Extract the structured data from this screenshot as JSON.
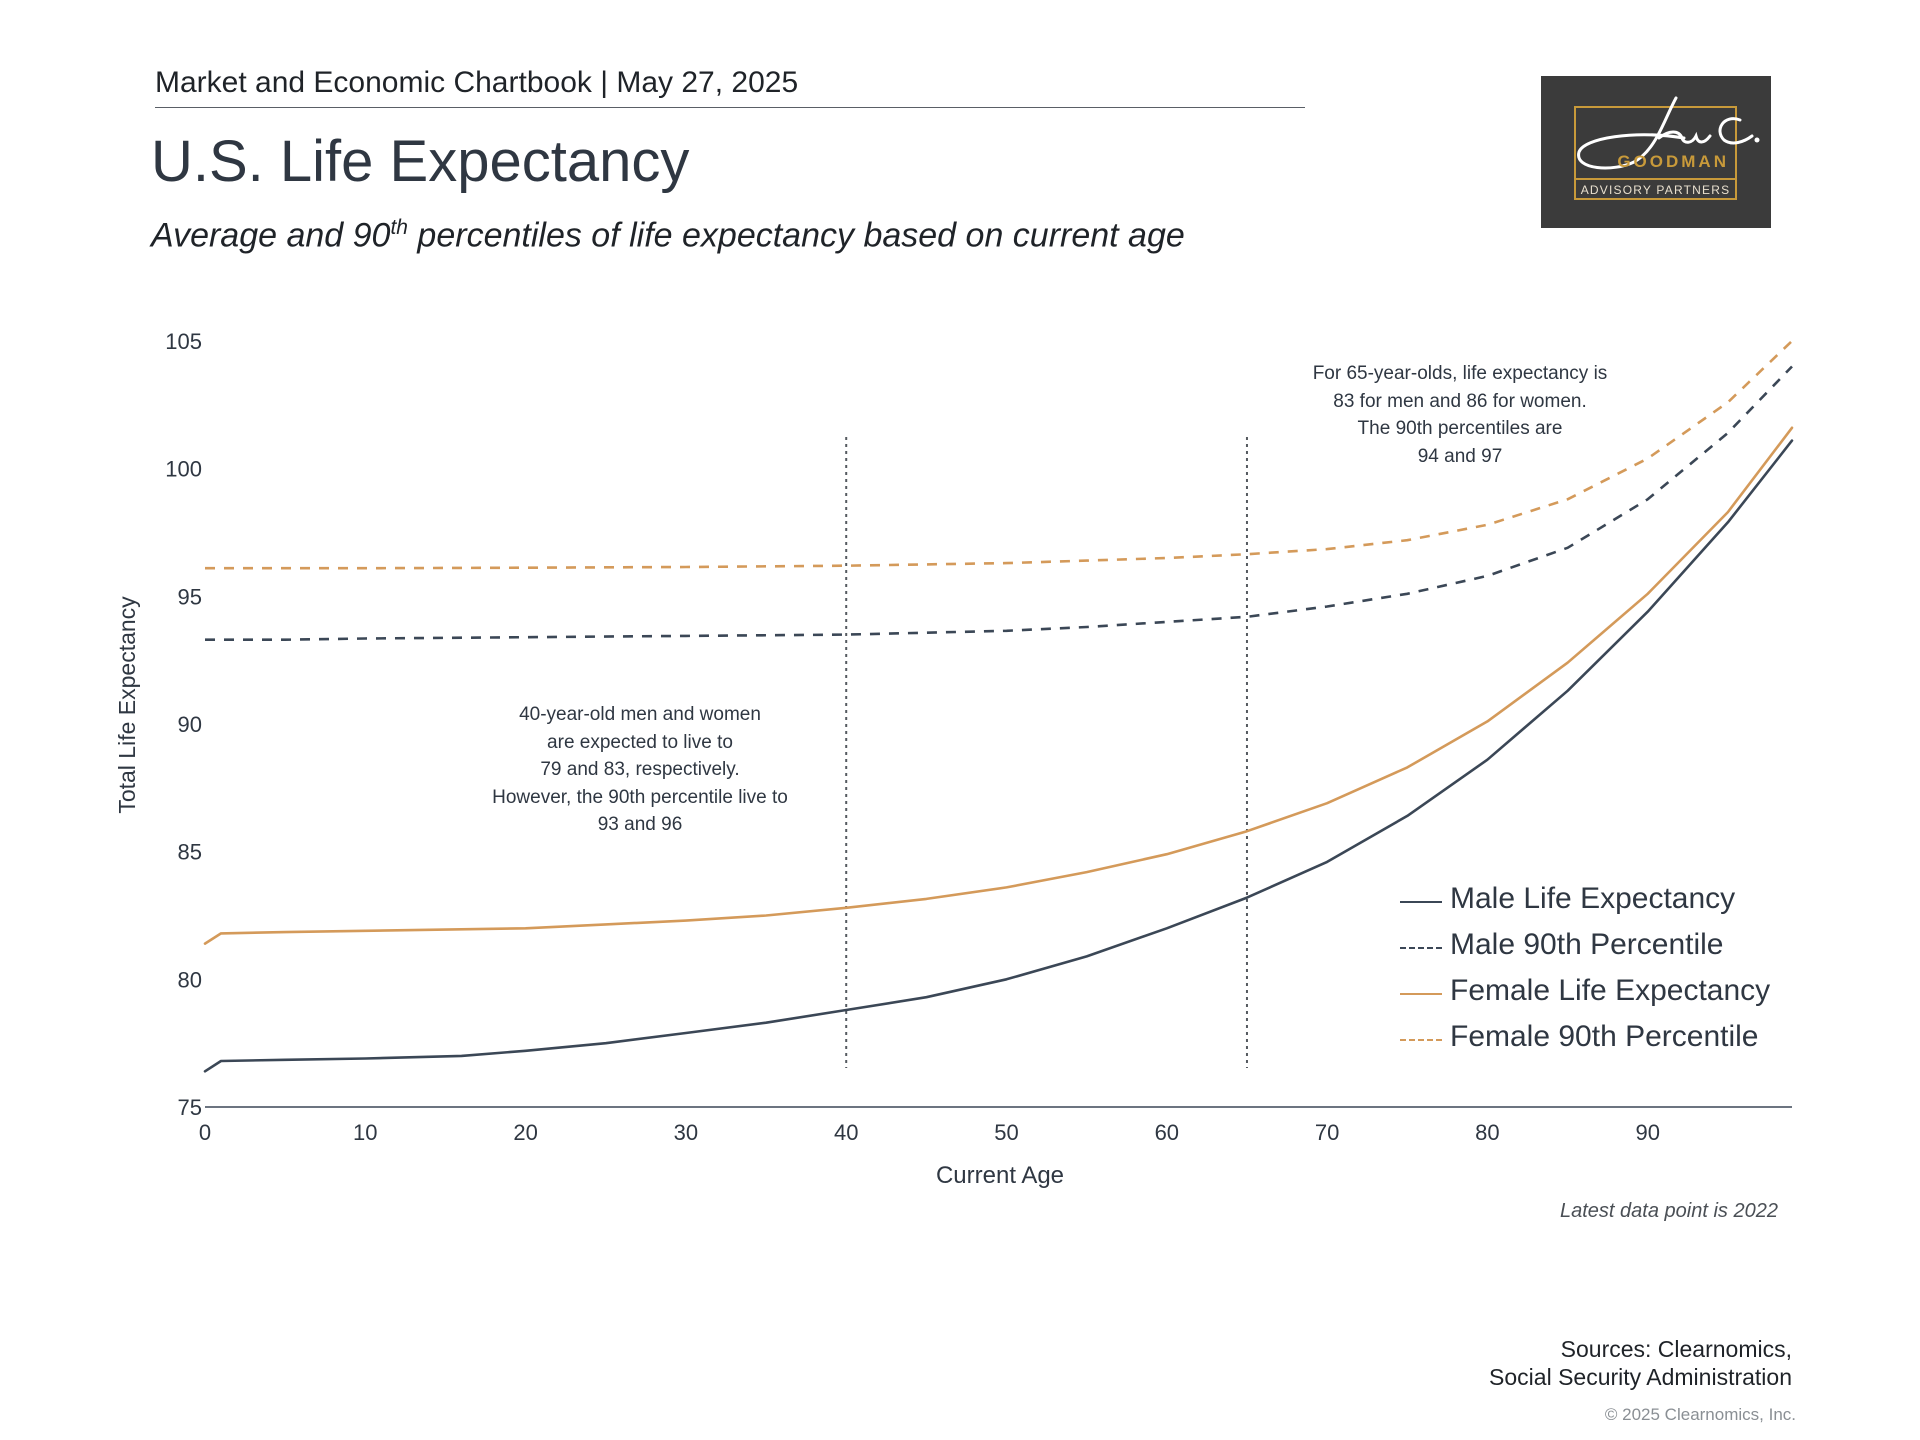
{
  "header": {
    "chartbook": "Market and Economic Chartbook | May 27, 2025",
    "title": "U.S. Life Expectancy",
    "subtitle_pre": "Average and 90",
    "subtitle_sup": "th",
    "subtitle_post": " percentiles of life expectancy based on current age"
  },
  "logo": {
    "wordmark": "GOODMAN",
    "tagline": "ADVISORY PARTNERS",
    "signature": "Jon C."
  },
  "chart_data": {
    "type": "line",
    "xlabel": "Current Age",
    "ylabel": "Total Life Expectancy",
    "xlim": [
      0,
      99
    ],
    "ylim": [
      75,
      105
    ],
    "x_ticks": [
      0,
      10,
      20,
      30,
      40,
      50,
      60,
      70,
      80,
      90
    ],
    "y_ticks": [
      75,
      80,
      85,
      90,
      95,
      100,
      105
    ],
    "grid": false,
    "legend_position": "bottom-right",
    "vertical_markers": [
      40,
      65
    ],
    "series": [
      {
        "name": "Male Life Expectancy",
        "style": "solid",
        "color": "#3b4756",
        "x": [
          0,
          1,
          5,
          10,
          16,
          20,
          25,
          30,
          35,
          40,
          45,
          50,
          55,
          60,
          65,
          70,
          75,
          80,
          85,
          90,
          95,
          99
        ],
        "y": [
          76.4,
          76.8,
          76.85,
          76.9,
          77.0,
          77.2,
          77.5,
          77.9,
          78.3,
          78.8,
          79.3,
          80.0,
          80.9,
          82.0,
          83.2,
          84.6,
          86.4,
          88.6,
          91.3,
          94.4,
          97.9,
          101.1
        ]
      },
      {
        "name": "Male 90th Percentile",
        "style": "dashed",
        "color": "#3b4756",
        "x": [
          0,
          5,
          10,
          20,
          30,
          40,
          50,
          55,
          60,
          65,
          70,
          75,
          80,
          85,
          90,
          95,
          99
        ],
        "y": [
          93.3,
          93.3,
          93.35,
          93.4,
          93.45,
          93.5,
          93.65,
          93.8,
          94.0,
          94.2,
          94.6,
          95.1,
          95.8,
          96.9,
          98.8,
          101.4,
          104.0
        ]
      },
      {
        "name": "Female Life Expectancy",
        "style": "solid",
        "color": "#d49a5a",
        "x": [
          0,
          1,
          5,
          10,
          20,
          25,
          30,
          35,
          40,
          45,
          50,
          55,
          60,
          65,
          70,
          75,
          80,
          85,
          90,
          95,
          99
        ],
        "y": [
          81.4,
          81.8,
          81.85,
          81.9,
          82.0,
          82.15,
          82.3,
          82.5,
          82.8,
          83.15,
          83.6,
          84.2,
          84.9,
          85.8,
          86.9,
          88.3,
          90.1,
          92.4,
          95.1,
          98.3,
          101.6
        ]
      },
      {
        "name": "Female 90th Percentile",
        "style": "dashed",
        "color": "#d49a5a",
        "x": [
          0,
          5,
          10,
          20,
          30,
          40,
          50,
          55,
          60,
          65,
          70,
          75,
          80,
          85,
          90,
          95,
          99
        ],
        "y": [
          96.1,
          96.1,
          96.1,
          96.12,
          96.15,
          96.2,
          96.3,
          96.4,
          96.5,
          96.65,
          96.85,
          97.2,
          97.8,
          98.8,
          100.4,
          102.6,
          105.0
        ]
      }
    ],
    "annotations": [
      {
        "x_age": 65,
        "lines": [
          "For 65-year-olds, life expectancy is",
          "83 for men and 86 for women.",
          "The 90th percentiles are",
          "94 and 97"
        ]
      },
      {
        "x_age": 40,
        "lines": [
          "40-year-old men and women",
          "are expected to live to",
          "79 and 83, respectively.",
          "However, the 90th percentile live to",
          "93 and 96"
        ]
      }
    ]
  },
  "footer": {
    "latest": "Latest data point is 2022",
    "sources_line1": "Sources: Clearnomics,",
    "sources_line2": "Social Security Administration",
    "copyright": "© 2025 Clearnomics, Inc."
  }
}
